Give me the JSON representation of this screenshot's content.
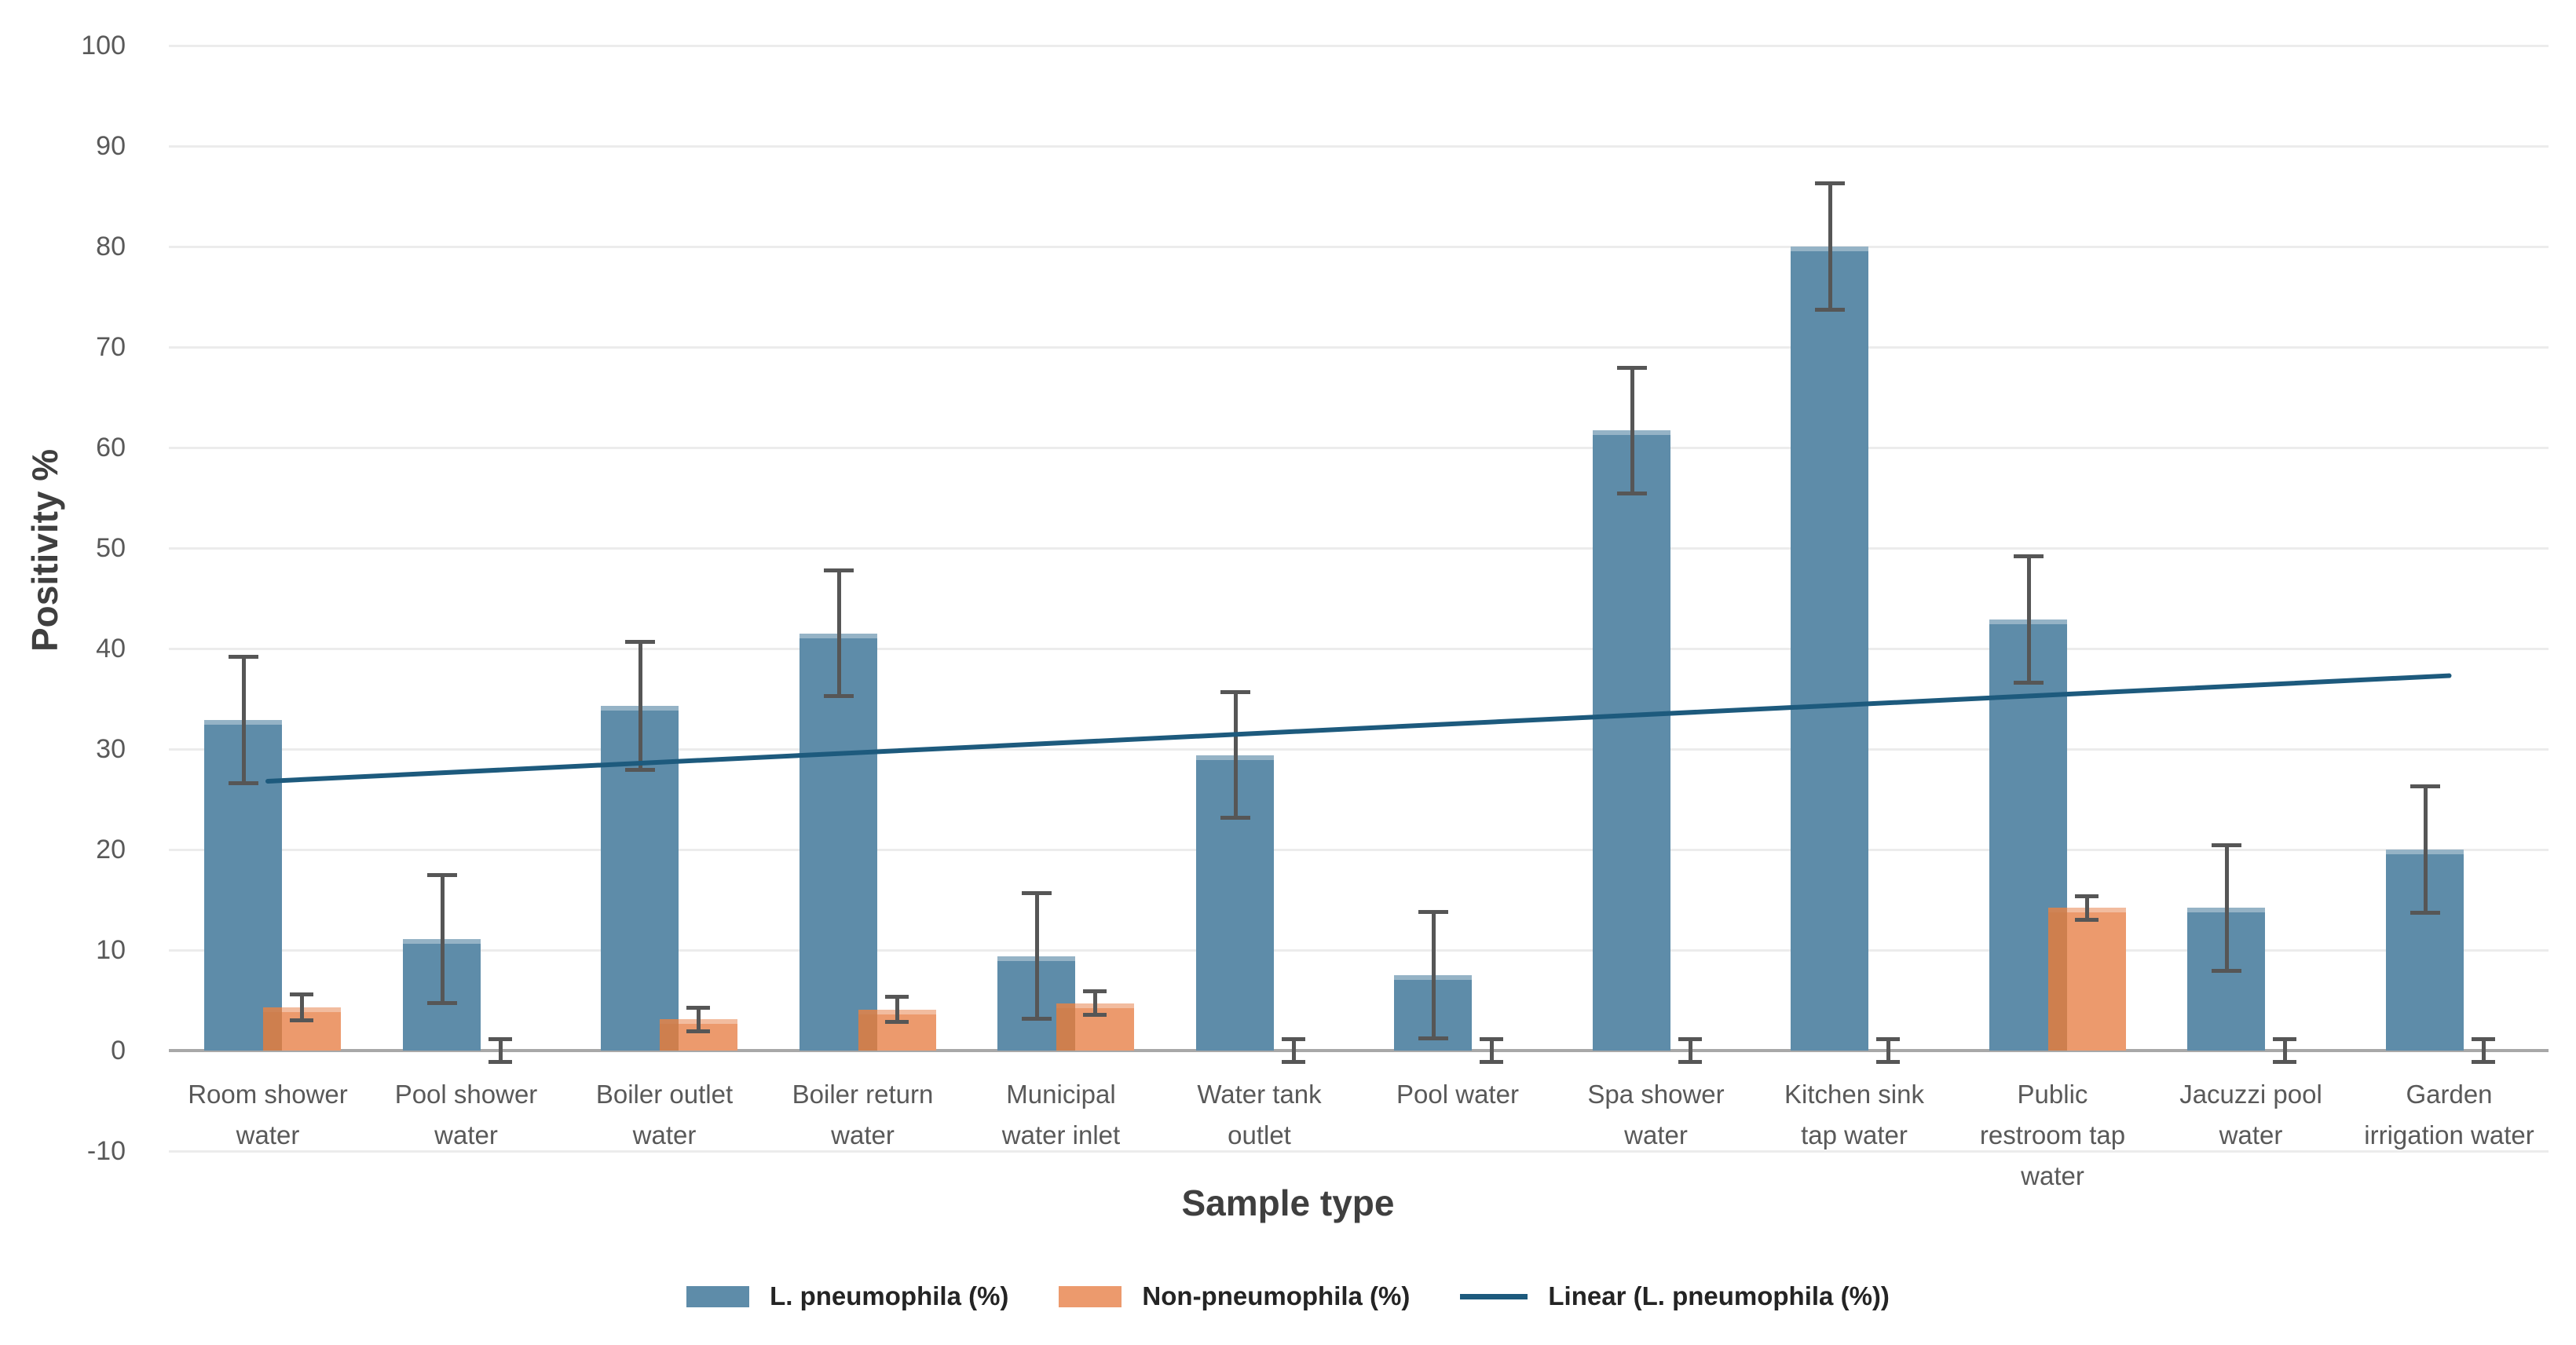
{
  "chart_data": {
    "type": "bar",
    "title": "",
    "xlabel": "Sample type",
    "ylabel": "Positivity %",
    "ylim": [
      -10,
      100
    ],
    "ytick_step": 10,
    "grid": true,
    "legend_position": "bottom",
    "categories": [
      "Room shower water",
      "Pool shower water",
      "Boiler outlet water",
      "Boiler return water",
      "Municipal water inlet",
      "Water tank outlet",
      "Pool water",
      "Spa shower water",
      "Kitchen sink tap water",
      "Public restroom tap water",
      "Jacuzzi pool water",
      "Garden irrigation water"
    ],
    "category_label_lines": [
      [
        "Room shower",
        "water"
      ],
      [
        "Pool shower",
        "water"
      ],
      [
        "Boiler outlet",
        "water"
      ],
      [
        "Boiler return",
        "water"
      ],
      [
        "Municipal",
        "water inlet"
      ],
      [
        "Water tank",
        "outlet"
      ],
      [
        "Pool water"
      ],
      [
        "Spa shower",
        "water"
      ],
      [
        "Kitchen sink",
        "tap water"
      ],
      [
        "Public",
        "restroom tap",
        "water"
      ],
      [
        "Jacuzzi pool",
        "water"
      ],
      [
        "Garden",
        "irrigation water"
      ]
    ],
    "series": [
      {
        "name": "L. pneumophila (%)",
        "color": "#5e8ca9",
        "values": [
          32.9,
          11.1,
          34.3,
          41.5,
          9.4,
          29.4,
          7.5,
          61.7,
          80.0,
          42.9,
          14.2,
          20.0
        ],
        "error": [
          6.3,
          6.4,
          6.4,
          6.3,
          6.3,
          6.3,
          6.3,
          6.3,
          6.3,
          6.3,
          6.3,
          6.3
        ]
      },
      {
        "name": "Non-pneumophila (%)",
        "color": "#ec9a6d",
        "overlap_color": "#c97a49",
        "values": [
          4.3,
          0,
          3.1,
          4.1,
          4.7,
          0,
          0,
          0,
          0,
          14.2,
          0,
          0
        ],
        "error": [
          1.3,
          1.2,
          1.2,
          1.3,
          1.2,
          1.2,
          1.2,
          1.2,
          1.2,
          1.2,
          1.2,
          1.2
        ]
      }
    ],
    "trendline": {
      "name": "Linear (L. pneumophila (%))",
      "color": "#1d5a7d",
      "start_value": 26.8,
      "end_value": 37.3
    },
    "error_bar_color": "#565656",
    "gridline_color": "#ececec",
    "axis_line_color": "#a8a8a8",
    "tick_text_color": "#595959",
    "axis_title_color": "#3f3f3f"
  }
}
